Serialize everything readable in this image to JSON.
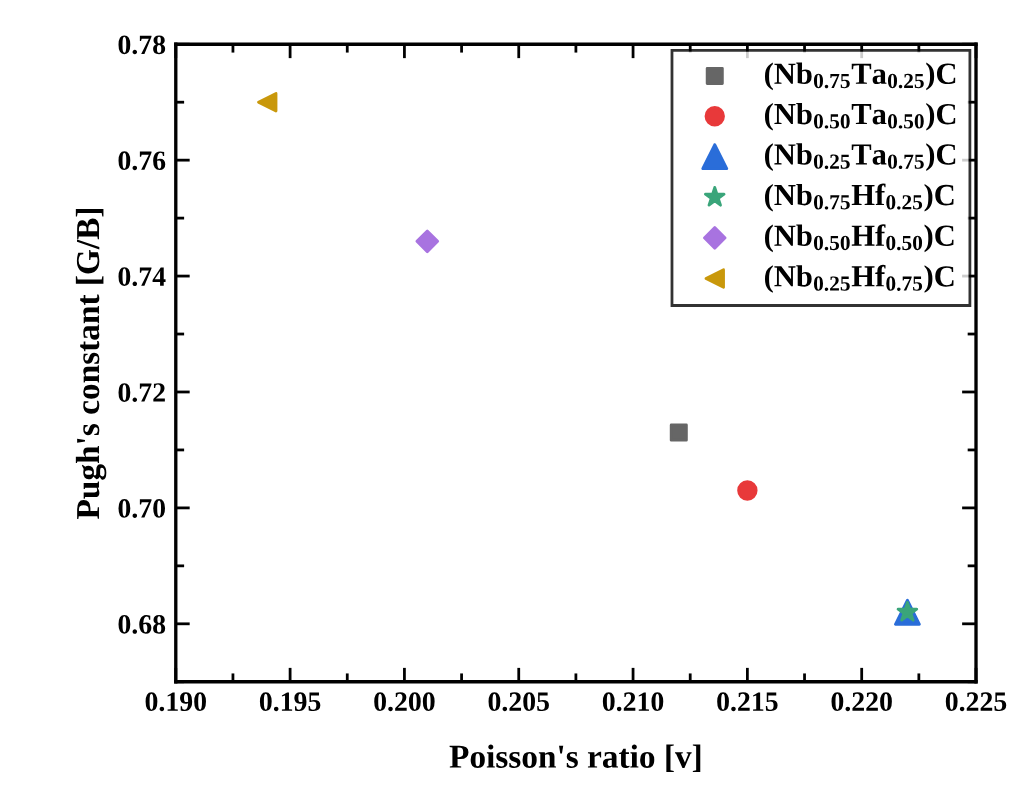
{
  "chart_data": {
    "type": "scatter",
    "xlabel": "Poisson's ratio [v]",
    "ylabel": "Pugh's constant [G/B]",
    "xlim": [
      0.19,
      0.225
    ],
    "xticks": [
      {
        "value": 0.19,
        "label": "0.190"
      },
      0.195,
      {
        "value": 0.2,
        "label": "0.200"
      },
      0.205,
      {
        "value": 0.21,
        "label": "0.210"
      },
      0.215,
      {
        "value": 0.22,
        "label": "0.220"
      },
      0.225
    ],
    "ylim": [
      0.67,
      0.78
    ],
    "yticks": [
      0.68,
      {
        "value": 0.7,
        "label": "0.70"
      },
      0.72,
      0.74,
      0.76,
      0.78
    ],
    "grid": false,
    "legend": "top right",
    "series": [
      {
        "name": "(Nb$_{0.75}$Ta$_{0.25}$)C",
        "color": "#666666",
        "marker": "square",
        "x": [
          0.212
        ],
        "values": [
          0.713
        ]
      },
      {
        "name": "(Nb$_{0.50}$Ta$_{0.50}$)C",
        "color": "#e8393a",
        "marker": "circle",
        "x": [
          0.215
        ],
        "values": [
          0.703
        ]
      },
      {
        "name": "(Nb$_{0.25}$Ta$_{0.75}$)C",
        "color": "#2a6dd9",
        "marker": "triangle",
        "x": [
          0.222
        ],
        "values": [
          0.682
        ]
      },
      {
        "name": "(Nb$_{0.75}$Hf$_{0.25}$)C",
        "color": "#3aa57a",
        "marker": "star",
        "x": [
          0.222
        ],
        "values": [
          0.682
        ]
      },
      {
        "name": "(Nb$_{0.50}$Hf$_{0.50}$)C",
        "color": "#a873e0",
        "marker": "diamond",
        "x": [
          0.201
        ],
        "values": [
          0.746
        ]
      },
      {
        "name": "(Nb$_{0.25}$Hf$_{0.75}$)C",
        "color": "#c9980b",
        "marker": "triangle-left",
        "x": [
          0.194
        ],
        "values": [
          0.77
        ]
      }
    ]
  }
}
